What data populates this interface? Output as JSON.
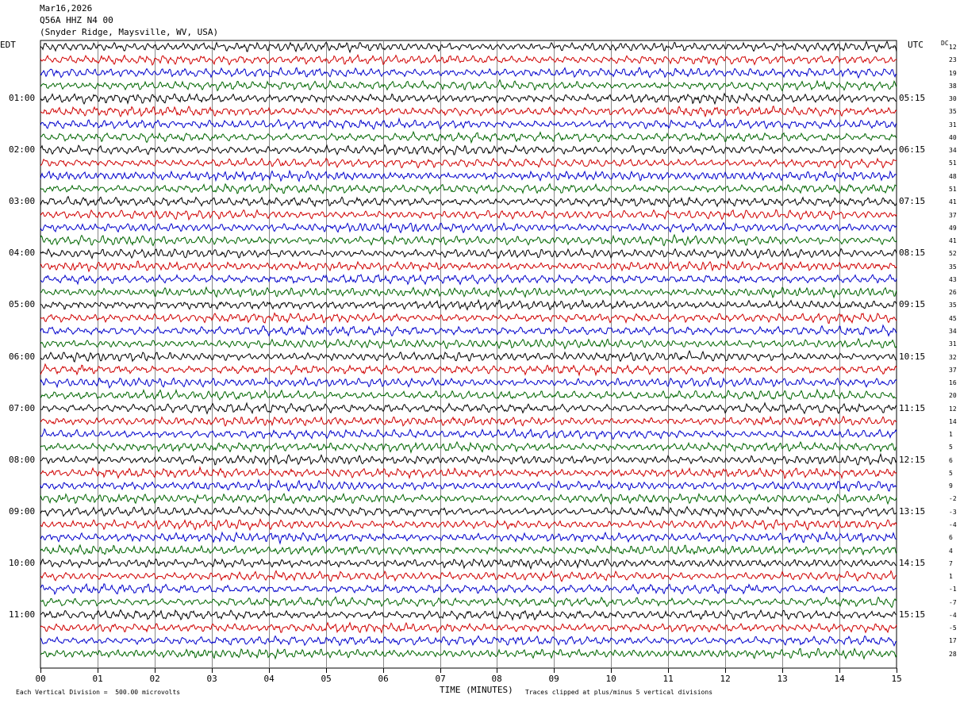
{
  "header": {
    "date": "Mar16,2026",
    "station": "Q56A HHZ N4 00",
    "location": "(Snyder Ridge, Maysville, WV, USA)"
  },
  "axis": {
    "left_zone": "EDT",
    "right_zone": "UTC",
    "dc_label": "DC",
    "x_title": "TIME (MINUTES)",
    "x_ticks": [
      "00",
      "01",
      "02",
      "03",
      "04",
      "05",
      "06",
      "07",
      "08",
      "09",
      "10",
      "11",
      "12",
      "13",
      "14",
      "15"
    ]
  },
  "footer": {
    "scale_note": "Each Vertical Division =  500.00 microvolts",
    "clip_note": "Traces clipped at plus/minus 5 vertical divisions"
  },
  "chart_data": {
    "type": "line",
    "title": "Q56A HHZ N4 00",
    "xlabel": "TIME (MINUTES)",
    "xlim": [
      0,
      15
    ],
    "trace_colors": [
      "#000000",
      "#d00000",
      "#0000cc",
      "#006600"
    ],
    "left_hour_labels": [
      "01:00",
      "02:00",
      "03:00",
      "04:00",
      "05:00",
      "06:00",
      "07:00",
      "08:00",
      "09:00",
      "10:00",
      "11:00"
    ],
    "right_hour_labels": [
      "05:15",
      "06:15",
      "07:15",
      "08:15",
      "09:15",
      "10:15",
      "11:15",
      "12:15",
      "13:15",
      "14:15",
      "15:15"
    ],
    "dc_offsets": [
      12,
      23,
      19,
      38,
      30,
      35,
      31,
      40,
      34,
      51,
      48,
      51,
      41,
      37,
      49,
      41,
      52,
      35,
      43,
      26,
      35,
      45,
      34,
      31,
      32,
      37,
      16,
      20,
      12,
      14,
      1,
      5,
      6,
      5,
      9,
      -2,
      -3,
      -4,
      6,
      4,
      7,
      1,
      -1,
      -7,
      -4,
      -5,
      17,
      28
    ]
  }
}
